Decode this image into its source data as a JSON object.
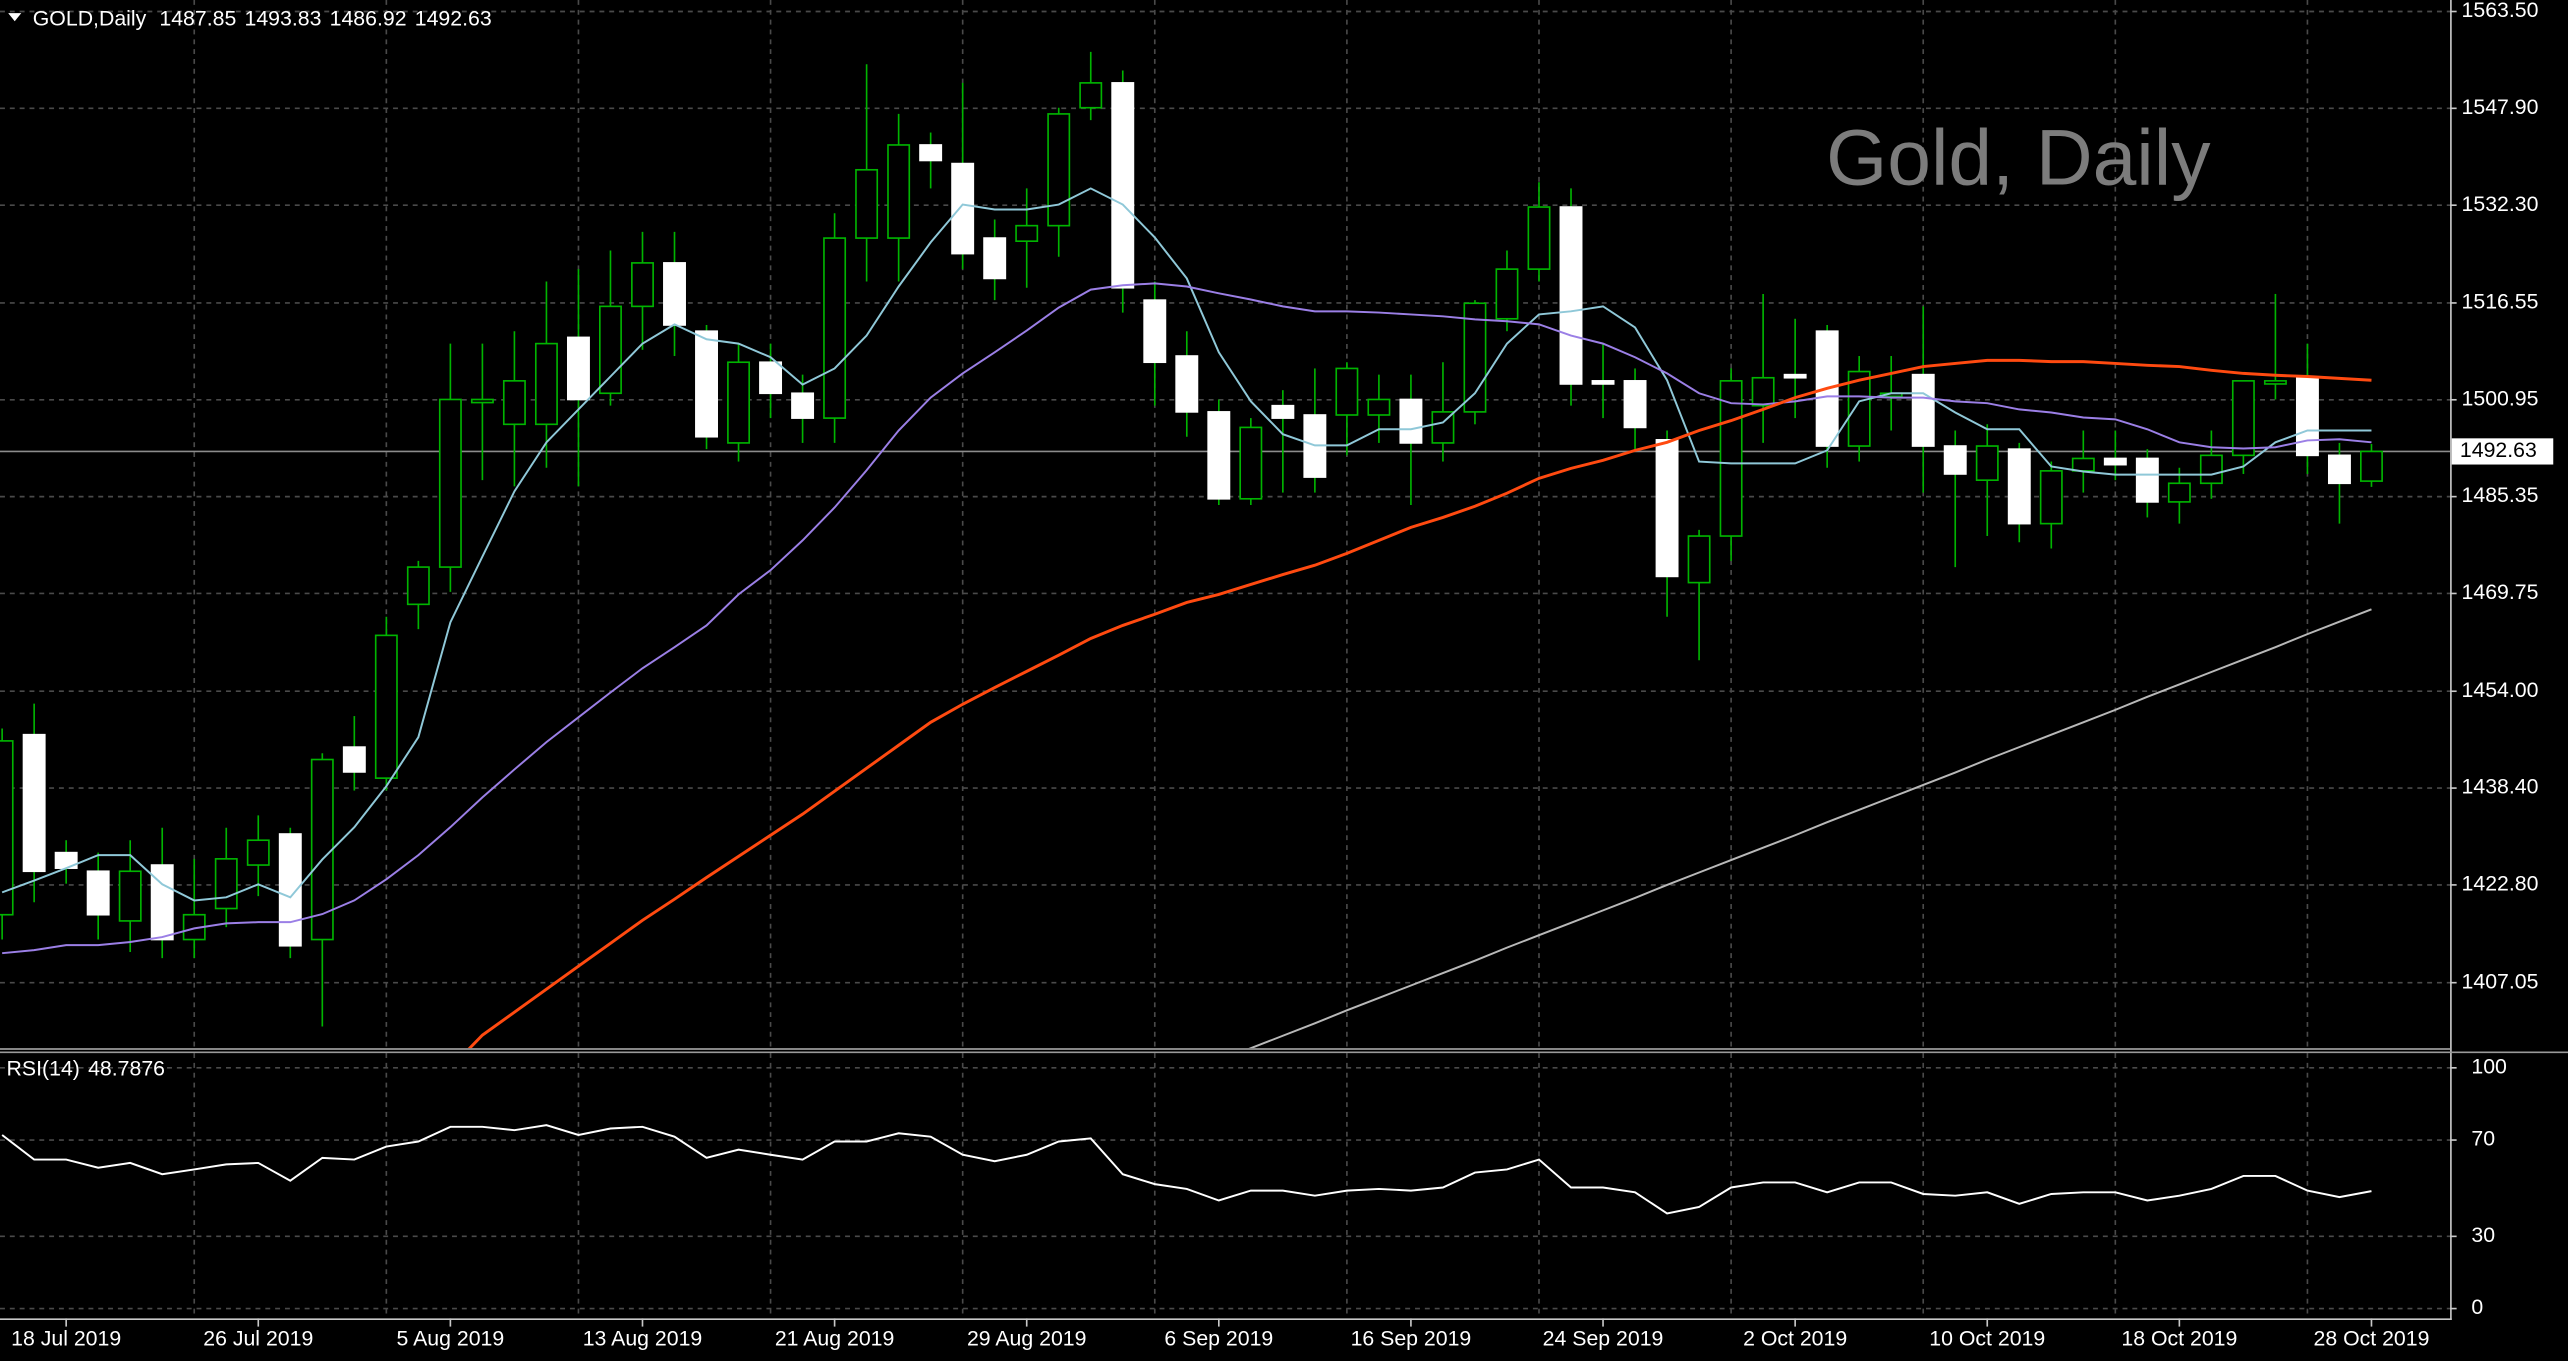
{
  "chart_data": {
    "type": "candlestick",
    "title": "GOLD,Daily",
    "watermark": "Gold, Daily",
    "categories": [
      null,
      null,
      "18 Jul 2019",
      null,
      null,
      null,
      null,
      null,
      "26 Jul 2019",
      null,
      null,
      null,
      null,
      null,
      "5 Aug 2019",
      null,
      null,
      null,
      null,
      null,
      "13 Aug 2019",
      null,
      null,
      null,
      null,
      null,
      "21 Aug 2019",
      null,
      null,
      null,
      null,
      null,
      "29 Aug 2019",
      null,
      null,
      null,
      null,
      null,
      "6 Sep 2019",
      null,
      null,
      null,
      null,
      null,
      "16 Sep 2019",
      null,
      null,
      null,
      null,
      null,
      "24 Sep 2019",
      null,
      null,
      null,
      null,
      null,
      "2 Oct 2019",
      null,
      null,
      null,
      null,
      null,
      "10 Oct 2019",
      null,
      null,
      null,
      null,
      null,
      "18 Oct 2019",
      null,
      null,
      null,
      null,
      null,
      "28 Oct 2019"
    ],
    "open": [
      1418,
      1447,
      1428,
      1425,
      1417,
      1426,
      1414,
      1419,
      1426,
      1431,
      1414,
      1445,
      1440,
      1468,
      1474,
      1500.5,
      1497,
      1497,
      1511,
      1502,
      1516,
      1523,
      1512,
      1494,
      1507,
      1502,
      1498,
      1527,
      1527,
      1542,
      1539,
      1527,
      1526.5,
      1529,
      1548,
      1552,
      1517,
      1508,
      1499,
      1485,
      1500,
      1498.5,
      1498.5,
      1498.5,
      1501,
      1494,
      1499,
      1514,
      1522,
      1532,
      1504,
      1504,
      1494.5,
      1471.5,
      1479,
      1500,
      1505,
      1512,
      1493.5,
      1501.5,
      1505,
      1493.5,
      1488,
      1493,
      1481,
      1489.5,
      1491.5,
      1491.5,
      1484.5,
      1487.5,
      1492,
      1503.5,
      1504.5,
      1492,
      1487.85
    ],
    "high": [
      1448,
      1452,
      1430,
      1428,
      1430,
      1432,
      1427,
      1432,
      1434,
      1432,
      1444,
      1450,
      1466,
      1475,
      1510,
      1510,
      1512,
      1520,
      1522,
      1525,
      1528,
      1528,
      1513,
      1510,
      1510,
      1505,
      1531,
      1555,
      1547,
      1544,
      1552,
      1530,
      1535,
      1548,
      1557,
      1554,
      1520,
      1512,
      1501,
      1498,
      1502.5,
      1506,
      1507,
      1505,
      1505,
      1507,
      1517,
      1525,
      1536,
      1535,
      1510,
      1506,
      1496,
      1480,
      1506,
      1518,
      1514,
      1513,
      1508,
      1508,
      1516,
      1496,
      1497,
      1494,
      1491,
      1496,
      1496,
      1493,
      1490,
      1496,
      1504,
      1518,
      1510,
      1494,
      1493.83
    ],
    "low": [
      1414,
      1420,
      1423,
      1414,
      1412,
      1411,
      1411,
      1416,
      1421,
      1411,
      1400,
      1438,
      1438,
      1464,
      1470,
      1488,
      1487,
      1490,
      1487,
      1500,
      1509,
      1508,
      1493,
      1491,
      1498,
      1494,
      1494,
      1520,
      1520,
      1535,
      1522,
      1517,
      1519,
      1524,
      1546,
      1515,
      1500,
      1495,
      1484,
      1484,
      1486,
      1486,
      1492,
      1494,
      1484,
      1491,
      1497,
      1512,
      1520,
      1500,
      1498,
      1493,
      1466,
      1459,
      1475,
      1494,
      1498,
      1490,
      1491,
      1496,
      1486,
      1474,
      1479,
      1478,
      1477,
      1486,
      1488,
      1482,
      1481,
      1485,
      1489,
      1501,
      1489,
      1481,
      1486.92
    ],
    "close": [
      1446,
      1425,
      1425.5,
      1418,
      1425,
      1414,
      1418,
      1427,
      1430,
      1413,
      1443,
      1441,
      1463,
      1474,
      1501,
      1501,
      1504,
      1510,
      1501,
      1516,
      1523,
      1513,
      1495,
      1507,
      1502,
      1498,
      1527,
      1538,
      1542,
      1539.5,
      1524.5,
      1520.5,
      1529,
      1547,
      1552,
      1519,
      1507,
      1499,
      1485,
      1496.5,
      1498,
      1488.5,
      1506,
      1501,
      1494,
      1499,
      1516.5,
      1522,
      1532,
      1503.5,
      1503.5,
      1496.5,
      1472.5,
      1479,
      1504,
      1504.5,
      1504.5,
      1493.5,
      1505.5,
      1502,
      1493.5,
      1489,
      1493.5,
      1481,
      1489.5,
      1491.5,
      1490.5,
      1484.5,
      1487.5,
      1492,
      1504,
      1504,
      1492,
      1487.5,
      1492.63
    ],
    "bull_color": "#000000",
    "bear_color": "#ffffff",
    "wick_color": "#00b400",
    "series": [
      {
        "color": "#8fc8d8",
        "values": [
          1421.6,
          1423.5,
          1425.5,
          1427.6,
          1427.6,
          1422.9,
          1420.3,
          1420.8,
          1422.9,
          1420.8,
          1426.9,
          1432.1,
          1438.7,
          1446.6,
          1465.1,
          1475.7,
          1486.2,
          1494.1,
          1499.4,
          1504.7,
          1510.0,
          1513.1,
          1510.7,
          1510.0,
          1507.8,
          1503.4,
          1506.0,
          1511.3,
          1519.2,
          1526.3,
          1532.4,
          1531.6,
          1531.6,
          1532.4,
          1535.0,
          1532.4,
          1527.1,
          1520.5,
          1508.6,
          1500.7,
          1495.4,
          1493.6,
          1493.6,
          1496.2,
          1496.2,
          1497.3,
          1502.0,
          1510.0,
          1514.7,
          1515.2,
          1516.0,
          1512.6,
          1504.1,
          1491.0,
          1490.7,
          1490.7,
          1490.7,
          1492.8,
          1500.7,
          1502.0,
          1502.0,
          1498.9,
          1496.2,
          1496.2,
          1490.2,
          1489.4,
          1488.9,
          1488.9,
          1488.9,
          1488.9,
          1490.2,
          1494.1,
          1496.0,
          1496.0,
          1496.0
        ]
      },
      {
        "color": "#9b7fe6",
        "values": [
          1411.8,
          1412.3,
          1413.1,
          1413.1,
          1413.6,
          1414.4,
          1415.8,
          1416.6,
          1416.8,
          1416.8,
          1418.1,
          1420.3,
          1423.7,
          1427.6,
          1432.1,
          1436.9,
          1441.4,
          1445.8,
          1449.8,
          1453.8,
          1457.7,
          1461.1,
          1464.6,
          1469.6,
          1473.5,
          1478.3,
          1483.6,
          1489.6,
          1496.0,
          1501.3,
          1505.2,
          1508.6,
          1512.1,
          1515.8,
          1518.7,
          1519.4,
          1519.7,
          1519.2,
          1518.1,
          1517.1,
          1516.0,
          1515.2,
          1515.2,
          1515.0,
          1514.7,
          1514.4,
          1513.9,
          1513.6,
          1513.1,
          1511.3,
          1510.0,
          1507.8,
          1505.2,
          1502.0,
          1500.4,
          1500.2,
          1500.7,
          1501.5,
          1501.5,
          1501.3,
          1501.3,
          1500.7,
          1500.4,
          1499.4,
          1498.9,
          1498.1,
          1497.8,
          1496.2,
          1494.1,
          1493.3,
          1493.1,
          1493.3,
          1494.4,
          1494.6,
          1494.1
        ]
      },
      {
        "color": "#ff4a10",
        "values": [
          null,
          null,
          null,
          null,
          null,
          null,
          null,
          null,
          null,
          null,
          null,
          null,
          null,
          null,
          1393.3,
          1398.6,
          1402.3,
          1406.0,
          1409.7,
          1413.4,
          1417.1,
          1420.5,
          1424.0,
          1427.4,
          1430.8,
          1434.2,
          1437.9,
          1441.6,
          1445.3,
          1449.0,
          1451.9,
          1454.6,
          1457.2,
          1459.8,
          1462.5,
          1464.6,
          1466.4,
          1468.3,
          1469.6,
          1471.2,
          1472.8,
          1474.3,
          1476.2,
          1478.3,
          1480.4,
          1482.0,
          1483.8,
          1485.9,
          1488.3,
          1489.9,
          1491.2,
          1492.8,
          1494.1,
          1496.0,
          1497.6,
          1499.4,
          1501.3,
          1502.8,
          1504.1,
          1505.2,
          1506.3,
          1506.8,
          1507.3,
          1507.3,
          1507.1,
          1507.1,
          1506.8,
          1506.5,
          1506.3,
          1505.7,
          1505.2,
          1504.9,
          1504.7,
          1504.4,
          1504.1
        ]
      },
      {
        "color": "#b8b8b8",
        "values": [
          null,
          null,
          null,
          null,
          null,
          null,
          null,
          null,
          null,
          null,
          null,
          null,
          null,
          null,
          null,
          null,
          null,
          null,
          null,
          null,
          null,
          null,
          null,
          null,
          null,
          null,
          null,
          null,
          null,
          null,
          null,
          null,
          null,
          null,
          null,
          null,
          null,
          null,
          1394.5,
          1396.5,
          1398.5,
          1400.5,
          1402.6,
          1404.6,
          1406.6,
          1408.6,
          1410.6,
          1412.7,
          1414.7,
          1416.7,
          1418.7,
          1420.7,
          1422.8,
          1424.8,
          1426.8,
          1428.8,
          1430.8,
          1432.9,
          1434.9,
          1436.9,
          1438.9,
          1440.9,
          1443.0,
          1445.0,
          1447.0,
          1449.0,
          1451.0,
          1453.1,
          1455.1,
          1457.1,
          1459.1,
          1461.1,
          1463.2,
          1465.2,
          1467.2
        ]
      }
    ],
    "ylim": [
      1396.5,
      1565.35
    ],
    "yticks": [
      {
        "value": 1563.5,
        "label": "1563.50"
      },
      {
        "value": 1547.9,
        "label": "1547.90"
      },
      {
        "value": 1532.3,
        "label": "1532.30"
      },
      1516.55,
      {
        "value": 1500.95,
        "label": "1500.95"
      },
      1485.35,
      {
        "value": 1469.75,
        "label": "1469.75"
      },
      {
        "value": 1454.0,
        "label": "1454.00"
      },
      {
        "value": 1438.4,
        "label": "1438.40"
      },
      {
        "value": 1422.8,
        "label": "1422.80"
      },
      1407.05
    ],
    "grid": true,
    "rsi": {
      "name": "RSI(14)",
      "color": "#ffffff",
      "values": [
        72.1,
        61.9,
        61.9,
        58.5,
        60.5,
        55.8,
        57.8,
        59.9,
        60.5,
        53.1,
        62.6,
        61.9,
        67.3,
        69.4,
        75.5,
        75.5,
        74.1,
        76.2,
        72.1,
        74.8,
        75.5,
        71.4,
        62.6,
        66.0,
        63.9,
        61.9,
        69.4,
        69.4,
        72.8,
        71.4,
        63.9,
        61.2,
        63.9,
        69.4,
        70.7,
        55.8,
        51.7,
        49.7,
        44.9,
        49.0,
        49.0,
        46.9,
        49.0,
        49.7,
        49.0,
        50.3,
        56.5,
        57.8,
        61.9,
        50.3,
        50.3,
        48.3,
        39.5,
        42.2,
        50.3,
        52.4,
        52.4,
        48.3,
        52.4,
        52.4,
        47.6,
        46.9,
        48.3,
        43.5,
        47.6,
        48.3,
        48.3,
        44.9,
        46.9,
        49.7,
        55.1,
        55.1,
        49.0,
        46.3,
        48.7876
      ],
      "ylim": [
        0,
        100
      ],
      "yticks": [
        100,
        70,
        30,
        0
      ]
    }
  }
}
